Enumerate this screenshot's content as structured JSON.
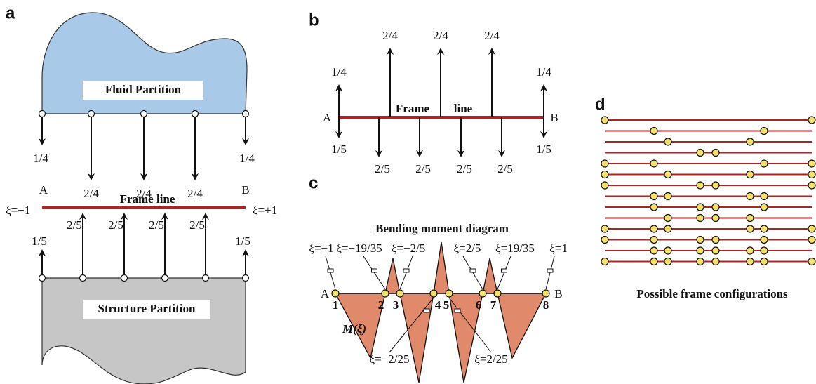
{
  "panels": {
    "a": "a",
    "b": "b",
    "c": "c",
    "d": "d"
  },
  "panel_a": {
    "fluid": "Fluid Partition",
    "structure": "Structure Partition",
    "frame": "Frame line",
    "A": "A",
    "B": "B",
    "xi_left": "ξ=−1",
    "xi_right": "ξ=+1",
    "fluid_loads": [
      "1/4",
      "2/4",
      "2/4",
      "2/4",
      "1/4"
    ],
    "structure_loads": [
      "1/5",
      "2/5",
      "2/5",
      "2/5",
      "2/5",
      "1/5"
    ]
  },
  "panel_b": {
    "A": "A",
    "B": "B",
    "frame": "Frame",
    "line": "line",
    "up_loads": [
      "1/4",
      "2/4",
      "2/4",
      "2/4",
      "1/4"
    ],
    "down_loads": [
      "1/5",
      "2/5",
      "2/5",
      "2/5",
      "2/5",
      "1/5"
    ]
  },
  "panel_c": {
    "title": "Bending moment diagram",
    "A": "A",
    "B": "B",
    "moment": "M(ξ)",
    "nodes": [
      "1",
      "2",
      "3",
      "4",
      "5",
      "6",
      "7",
      "8"
    ],
    "xi_top": [
      "ξ=−1",
      "ξ=−19/35",
      "ξ=−2/5",
      "ξ=2/5",
      "ξ=19/35",
      "ξ=1"
    ],
    "xi_bottom": [
      "ξ=−2/25",
      "ξ=2/25"
    ]
  },
  "panel_d": {
    "caption": "Possible frame configurations"
  }
}
